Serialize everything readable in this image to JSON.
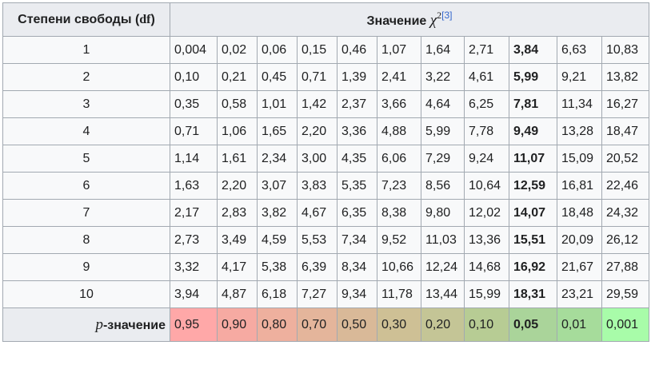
{
  "header": {
    "df_label": "Степени свободы (",
    "df_symbol": "df",
    "df_close": ")",
    "value_label": "Значение ",
    "chi_symbol": "χ",
    "chi_exponent": "2",
    "reference": "[3]"
  },
  "rows": [
    {
      "df": "1",
      "values": [
        "0,004",
        "0,02",
        "0,06",
        "0,15",
        "0,46",
        "1,07",
        "1,64",
        "2,71",
        "3,84",
        "6,63",
        "10,83"
      ]
    },
    {
      "df": "2",
      "values": [
        "0,10",
        "0,21",
        "0,45",
        "0,71",
        "1,39",
        "2,41",
        "3,22",
        "4,61",
        "5,99",
        "9,21",
        "13,82"
      ]
    },
    {
      "df": "3",
      "values": [
        "0,35",
        "0,58",
        "1,01",
        "1,42",
        "2,37",
        "3,66",
        "4,64",
        "6,25",
        "7,81",
        "11,34",
        "16,27"
      ]
    },
    {
      "df": "4",
      "values": [
        "0,71",
        "1,06",
        "1,65",
        "2,20",
        "3,36",
        "4,88",
        "5,99",
        "7,78",
        "9,49",
        "13,28",
        "18,47"
      ]
    },
    {
      "df": "5",
      "values": [
        "1,14",
        "1,61",
        "2,34",
        "3,00",
        "4,35",
        "6,06",
        "7,29",
        "9,24",
        "11,07",
        "15,09",
        "20,52"
      ]
    },
    {
      "df": "6",
      "values": [
        "1,63",
        "2,20",
        "3,07",
        "3,83",
        "5,35",
        "7,23",
        "8,56",
        "10,64",
        "12,59",
        "16,81",
        "22,46"
      ]
    },
    {
      "df": "7",
      "values": [
        "2,17",
        "2,83",
        "3,82",
        "4,67",
        "6,35",
        "8,38",
        "9,80",
        "12,02",
        "14,07",
        "18,48",
        "24,32"
      ]
    },
    {
      "df": "8",
      "values": [
        "2,73",
        "3,49",
        "4,59",
        "5,53",
        "7,34",
        "9,52",
        "11,03",
        "13,36",
        "15,51",
        "20,09",
        "26,12"
      ]
    },
    {
      "df": "9",
      "values": [
        "3,32",
        "4,17",
        "5,38",
        "6,39",
        "8,34",
        "10,66",
        "12,24",
        "14,68",
        "16,92",
        "21,67",
        "27,88"
      ]
    },
    {
      "df": "10",
      "values": [
        "3,94",
        "4,87",
        "6,18",
        "7,27",
        "9,34",
        "11,78",
        "13,44",
        "15,99",
        "18,31",
        "23,21",
        "29,59"
      ]
    }
  ],
  "bold_column_index": 8,
  "p_row": {
    "label_symbol": "p",
    "label_text": "-значение",
    "values": [
      "0,95",
      "0,90",
      "0,80",
      "0,70",
      "0,50",
      "0,30",
      "0,20",
      "0,10",
      "0,05",
      "0,01",
      "0,001"
    ],
    "colors": [
      "#ffa8a8",
      "#f6aaa2",
      "#eeb09e",
      "#e4b59b",
      "#d9b998",
      "#cec095",
      "#c4c596",
      "#b7cc94",
      "#aad49a",
      "#a6dc9b",
      "#a8fca9"
    ]
  }
}
